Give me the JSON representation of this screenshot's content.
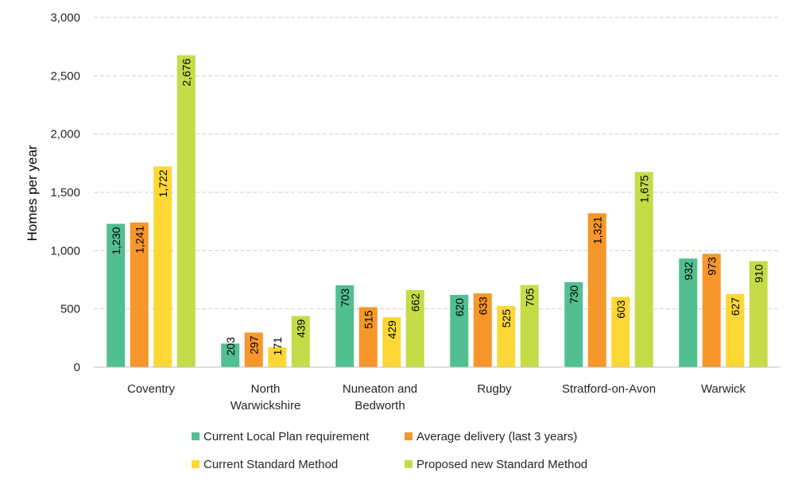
{
  "chart_data": {
    "type": "bar",
    "title": "",
    "xlabel": "",
    "ylabel": "Homes per year",
    "ylim": [
      0,
      3000
    ],
    "ytick_values": [
      0,
      500,
      1000,
      1500,
      2000,
      2500,
      3000
    ],
    "ytick_labels": [
      "0",
      "500",
      "1,000",
      "1,500",
      "2,000",
      "2,500",
      "3,000"
    ],
    "grid": "horizontal dashed",
    "legend_position": "bottom",
    "categories": [
      [
        "Coventry"
      ],
      [
        "North",
        "Warwickshire"
      ],
      [
        "Nuneaton and",
        "Bedworth"
      ],
      [
        "Rugby"
      ],
      [
        "Stratford-on-Avon"
      ],
      [
        "Warwick"
      ]
    ],
    "series": [
      {
        "name": "Current Local Plan requirement",
        "color": "#52bf90",
        "values": [
          1230,
          203,
          703,
          620,
          730,
          932
        ],
        "labels": [
          "1,230",
          "203",
          "703",
          "620",
          "730",
          "932"
        ]
      },
      {
        "name": "Average delivery (last 3 years)",
        "color": "#f7962a",
        "values": [
          1241,
          297,
          515,
          633,
          1321,
          973
        ],
        "labels": [
          "1,241",
          "297",
          "515",
          "633",
          "1,321",
          "973"
        ]
      },
      {
        "name": "Current Standard Method",
        "color": "#fdd835",
        "values": [
          1722,
          171,
          429,
          525,
          603,
          627
        ],
        "labels": [
          "1,722",
          "171",
          "429",
          "525",
          "603",
          "627"
        ]
      },
      {
        "name": "Proposed new Standard Method",
        "color": "#c5dc48",
        "values": [
          2676,
          439,
          662,
          705,
          1675,
          910
        ],
        "labels": [
          "2,676",
          "439",
          "662",
          "705",
          "1,675",
          "910"
        ]
      }
    ]
  }
}
